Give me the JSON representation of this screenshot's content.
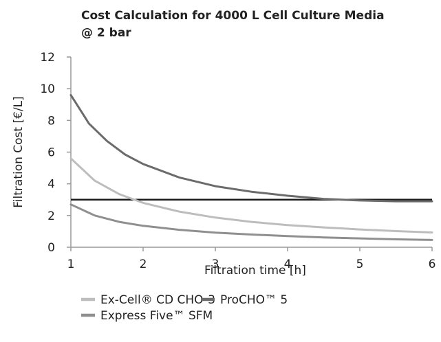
{
  "chart_data": {
    "type": "line",
    "title_lines": [
      "Cost Calculation for 4000 L Cell Culture Media",
      "@ 2 bar"
    ],
    "xlabel": "Filtration time [h]",
    "ylabel": "Filtration Cost [€/L]",
    "xlim": [
      1,
      6
    ],
    "ylim": [
      0,
      12
    ],
    "x_ticks": [
      "1",
      "2",
      "3",
      "4",
      "5",
      "6"
    ],
    "y_ticks": [
      "0",
      "2",
      "4",
      "6",
      "8",
      "10",
      "12"
    ],
    "grid": false,
    "legend_position": "bottom",
    "series": [
      {
        "name": "Ex-Cell® CD CHO-3",
        "color": "#bdbdbd",
        "x": [
          1,
          1.33,
          1.67,
          2,
          2.5,
          3,
          3.5,
          4,
          4.5,
          5,
          5.5,
          6
        ],
        "y": [
          5.6,
          4.2,
          3.35,
          2.8,
          2.25,
          1.87,
          1.6,
          1.4,
          1.25,
          1.12,
          1.02,
          0.93
        ]
      },
      {
        "name": "ProCHO™ 5",
        "color": "#6b6b6b",
        "x": [
          1,
          1.25,
          1.5,
          1.75,
          2,
          2.5,
          3,
          3.5,
          4,
          4.5,
          5,
          5.5,
          6
        ],
        "y": [
          9.6,
          7.8,
          6.7,
          5.85,
          5.25,
          4.4,
          3.85,
          3.5,
          3.25,
          3.05,
          2.95,
          2.9,
          2.9
        ]
      },
      {
        "name": "Express Five™ SFM",
        "color": "#8f8f8f",
        "x": [
          1,
          1.33,
          1.67,
          2,
          2.5,
          3,
          3.5,
          4,
          4.5,
          5,
          5.5,
          6
        ],
        "y": [
          2.7,
          2.0,
          1.6,
          1.35,
          1.1,
          0.92,
          0.8,
          0.7,
          0.62,
          0.56,
          0.5,
          0.46
        ]
      }
    ],
    "reference_line": {
      "y": 3.0,
      "color": "#1a1a1a"
    },
    "legend": [
      {
        "label": "Ex-Cell® CD CHO-3",
        "color": "#bdbdbd"
      },
      {
        "label": "ProCHO™ 5",
        "color": "#6b6b6b"
      },
      {
        "label": "Express Five™ SFM",
        "color": "#8f8f8f"
      }
    ]
  }
}
